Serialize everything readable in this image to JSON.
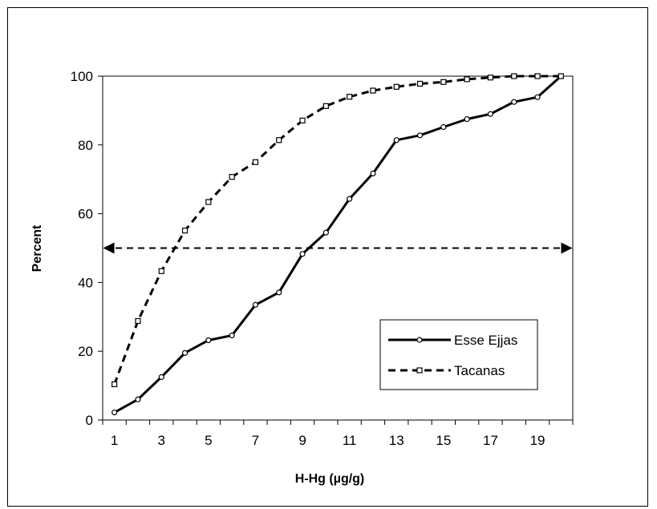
{
  "chart_data": {
    "type": "line",
    "title": "",
    "xlabel": "H-Hg (µg/g)",
    "ylabel": "Percent",
    "x": [
      1,
      2,
      3,
      4,
      5,
      6,
      7,
      8,
      9,
      10,
      11,
      12,
      13,
      14,
      15,
      16,
      17,
      18,
      19,
      20
    ],
    "x_tick_labels": [
      "1",
      "3",
      "5",
      "7",
      "9",
      "11",
      "13",
      "15",
      "17",
      "19"
    ],
    "y_tick_labels": [
      "0",
      "20",
      "40",
      "60",
      "80",
      "100"
    ],
    "ylim": [
      0,
      100
    ],
    "grid": false,
    "legend_position": "bottom-right",
    "reference_line": {
      "y": 50,
      "style": "dashed",
      "arrows": "both"
    },
    "series": [
      {
        "name": "Esse Ejjas",
        "line_style": "solid",
        "marker": "circle",
        "color": "#000000",
        "values": [
          2.2,
          6.0,
          12.5,
          19.5,
          23.2,
          24.6,
          33.5,
          37.1,
          48.3,
          54.5,
          64.3,
          71.7,
          81.4,
          82.8,
          85.2,
          87.5,
          89.0,
          92.5,
          93.9,
          100
        ]
      },
      {
        "name": "Tacanas",
        "line_style": "dashed",
        "marker": "square",
        "color": "#000000",
        "values": [
          10.4,
          28.8,
          43.3,
          55.1,
          63.4,
          70.7,
          75.0,
          81.4,
          87.1,
          91.3,
          94.0,
          95.8,
          96.9,
          97.8,
          98.3,
          99.1,
          99.6,
          100,
          100,
          100
        ]
      }
    ]
  }
}
